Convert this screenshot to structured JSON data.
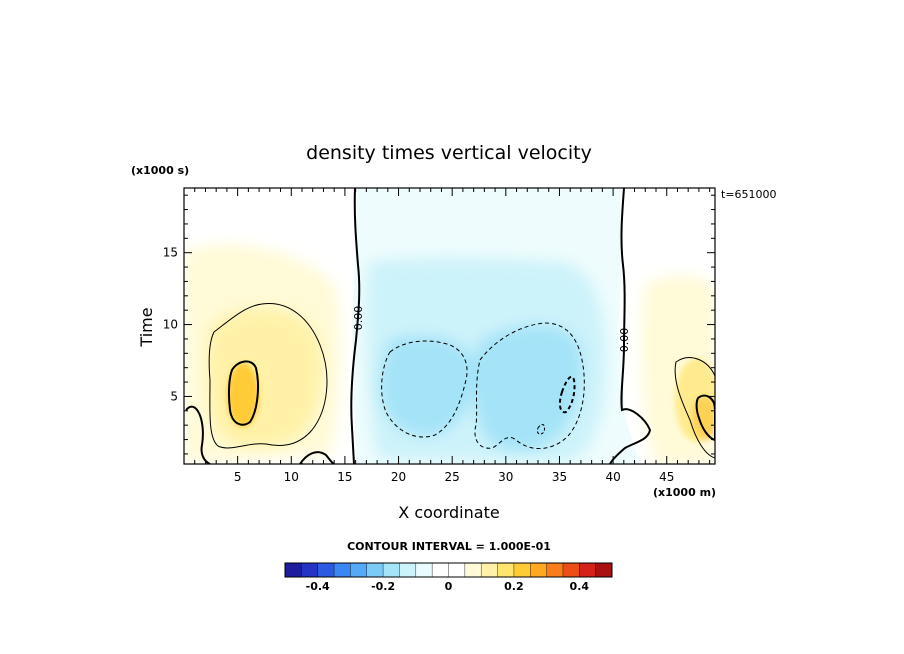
{
  "chart_data": {
    "type": "heatmap",
    "title": "density times vertical velocity",
    "xlabel": "X coordinate",
    "ylabel": "Time",
    "x_unit": "(x1000 m)",
    "y_unit": "(x1000 s)",
    "time_stamp": "t=651000",
    "xlim": [
      0,
      49.5
    ],
    "ylim": [
      0.3,
      19.5
    ],
    "xticks": [
      "5",
      "10",
      "15",
      "20",
      "25",
      "30",
      "35",
      "40",
      "45"
    ],
    "yticks": [
      "5",
      "10",
      "15"
    ],
    "contour_interval_label": "CONTOUR INTERVAL = 1.000E-01",
    "zero_contour_labels": [
      "0.00",
      "0.00"
    ],
    "colorbar": {
      "range": [
        -0.5,
        0.5
      ],
      "tick_labels": [
        "-0.4",
        "-0.2",
        "0",
        "0.2",
        "0.4"
      ],
      "colors": [
        "#1d1d9e",
        "#2434c4",
        "#2c5be0",
        "#3a86f2",
        "#55aaf7",
        "#7ccbf6",
        "#a4e3f8",
        "#cdf3fa",
        "#eafbfd",
        "#ffffff",
        "#ffffff",
        "#fffbd8",
        "#fff2a8",
        "#ffe46e",
        "#ffcc38",
        "#ffa820",
        "#f97d1a",
        "#ec4e16",
        "#d4221a",
        "#a81012"
      ]
    },
    "features": [
      {
        "sign": "positive",
        "x": 5.5,
        "y": 5.0,
        "peak": 0.3
      },
      {
        "sign": "negative",
        "x": 24.0,
        "y": 5.5,
        "peak": -0.15
      },
      {
        "sign": "negative",
        "x": 34.0,
        "y": 5.0,
        "peak": -0.2
      },
      {
        "sign": "positive",
        "x": 48.5,
        "y": 3.5,
        "peak": 0.3
      }
    ]
  }
}
